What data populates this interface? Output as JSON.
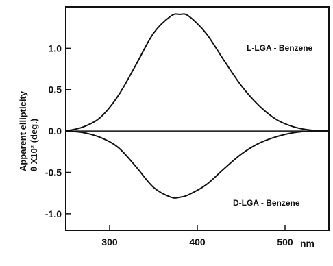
{
  "chart_data": {
    "type": "line",
    "title": "",
    "xlabel": "",
    "x_unit": "nm",
    "ylabel_lines": [
      "Apparent ellipticity",
      "θ X10²  (deg.)"
    ],
    "xlim": [
      250,
      550
    ],
    "ylim": [
      -1.2,
      1.5
    ],
    "xticks": [
      300,
      400,
      500
    ],
    "xtick_labels": [
      "300",
      "400",
      "500"
    ],
    "yticks": [
      1.0,
      0.5,
      0.0,
      -0.5,
      -1.0
    ],
    "ytick_labels": [
      "1.0",
      "0.5",
      "0.0",
      "-0.5",
      "-1.0"
    ],
    "grid": false,
    "zero_line": true,
    "series": [
      {
        "name": "L-LGA - Benzene",
        "x": [
          250,
          270,
          290,
          310,
          330,
          350,
          370,
          380,
          390,
          410,
          430,
          450,
          470,
          490,
          510,
          530,
          550
        ],
        "y": [
          0.0,
          0.05,
          0.17,
          0.43,
          0.8,
          1.18,
          1.39,
          1.41,
          1.39,
          1.18,
          0.86,
          0.55,
          0.31,
          0.14,
          0.05,
          0.01,
          0.0
        ]
      },
      {
        "name": "D-LGA - Benzene",
        "x": [
          250,
          270,
          290,
          310,
          330,
          350,
          370,
          380,
          390,
          410,
          430,
          450,
          470,
          490,
          510,
          530,
          550
        ],
        "y": [
          0.0,
          -0.02,
          -0.08,
          -0.2,
          -0.43,
          -0.68,
          -0.8,
          -0.8,
          -0.77,
          -0.65,
          -0.46,
          -0.28,
          -0.15,
          -0.07,
          -0.02,
          0.0,
          0.0
        ]
      }
    ]
  }
}
